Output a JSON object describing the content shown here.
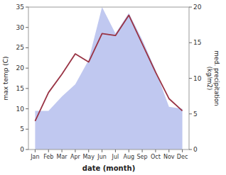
{
  "chart_data": {
    "type": "line",
    "categories": [
      "Jan",
      "Feb",
      "Mar",
      "Apr",
      "May",
      "Jun",
      "Jul",
      "Aug",
      "Sep",
      "Oct",
      "Nov",
      "Dec"
    ],
    "series": [
      {
        "type": "area",
        "color": "#c0c8f0",
        "values": [
          9.5,
          9.5,
          13.0,
          16.0,
          22.0,
          35.0,
          28.5,
          33.5,
          27.0,
          19.5,
          10.5,
          10.0
        ]
      },
      {
        "type": "line",
        "color": "#993344",
        "values": [
          7.0,
          14.0,
          18.5,
          23.5,
          21.5,
          28.5,
          28.0,
          33.0,
          26.0,
          19.0,
          12.5,
          9.5
        ]
      }
    ],
    "xlabel": "date (month)",
    "ylabel": "max temp (C)",
    "y2label": "med. precipitation\n(kg/m2)",
    "ylim": [
      0,
      35
    ],
    "yticks": [
      0,
      5,
      10,
      15,
      20,
      25,
      30,
      35
    ],
    "y2lim": [
      0,
      20
    ],
    "y2ticks": [
      0,
      5,
      10,
      15,
      20
    ],
    "grid": false
  }
}
